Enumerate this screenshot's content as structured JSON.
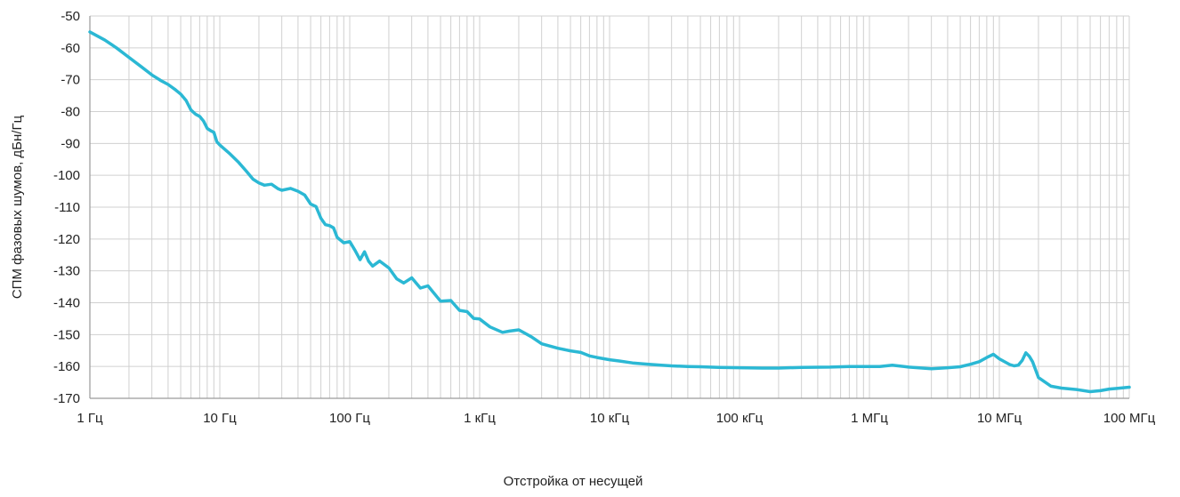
{
  "chart_data": {
    "type": "line",
    "title": "",
    "xlabel": "Отстройка от несущей",
    "ylabel": "СПМ фазовых шумов, дБн/Гц",
    "x_scale": "log",
    "xlim": [
      1,
      100000000
    ],
    "ylim": [
      -170,
      -50
    ],
    "grid": true,
    "legend": "none",
    "colors": {
      "line": "#2bb8d4",
      "grid": "#d0d0d0",
      "axis": "#9a9a9a"
    },
    "x_ticks": [
      {
        "value": 1,
        "label": "1 Гц"
      },
      {
        "value": 10,
        "label": "10 Гц"
      },
      {
        "value": 100,
        "label": "100 Гц"
      },
      {
        "value": 1000,
        "label": "1 кГц"
      },
      {
        "value": 10000,
        "label": "10 кГц"
      },
      {
        "value": 100000,
        "label": "100 кГц"
      },
      {
        "value": 1000000,
        "label": "1 МГц"
      },
      {
        "value": 10000000,
        "label": "10 МГц"
      },
      {
        "value": 100000000,
        "label": "100 МГц"
      }
    ],
    "y_ticks": [
      {
        "value": -50,
        "label": "-50"
      },
      {
        "value": -60,
        "label": "-60"
      },
      {
        "value": -70,
        "label": "-70"
      },
      {
        "value": -80,
        "label": "-80"
      },
      {
        "value": -90,
        "label": "-90"
      },
      {
        "value": -100,
        "label": "-100"
      },
      {
        "value": -110,
        "label": "-110"
      },
      {
        "value": -120,
        "label": "-120"
      },
      {
        "value": -130,
        "label": "-130"
      },
      {
        "value": -140,
        "label": "-140"
      },
      {
        "value": -150,
        "label": "-150"
      },
      {
        "value": -160,
        "label": "-160"
      },
      {
        "value": -170,
        "label": "-170"
      }
    ],
    "series": [
      {
        "x": [
          1,
          1.3,
          1.6,
          2,
          2.5,
          3,
          3.5,
          4,
          4.5,
          5,
          5.5,
          6,
          6.5,
          7,
          7.5,
          8,
          8.5,
          9,
          9.5,
          10,
          12,
          14,
          16,
          18,
          20,
          22,
          25,
          28,
          30,
          35,
          40,
          45,
          50,
          55,
          60,
          65,
          70,
          75,
          80,
          90,
          100,
          110,
          120,
          130,
          140,
          150,
          170,
          200,
          230,
          260,
          300,
          350,
          400,
          500,
          600,
          700,
          800,
          900,
          1000,
          1200,
          1500,
          1700,
          2000,
          2500,
          3000,
          4000,
          5000,
          6000,
          7000,
          8000,
          10000,
          12000,
          15000,
          20000,
          25000,
          30000,
          40000,
          50000,
          70000,
          100000,
          150000,
          200000,
          300000,
          500000,
          700000,
          900000,
          1000000,
          1200000,
          1500000,
          2000000,
          3000000,
          4000000,
          5000000,
          6000000,
          7000000,
          8000000,
          9000000,
          10000000,
          12000000,
          13000000,
          14000000,
          15000000,
          16000000,
          17000000,
          18000000,
          20000000,
          25000000,
          30000000,
          40000000,
          50000000,
          60000000,
          70000000,
          80000000,
          100000000
        ],
        "y": [
          -55,
          -57.5,
          -60,
          -63,
          -66,
          -68.5,
          -70.2,
          -71.5,
          -73,
          -74.5,
          -76.5,
          -79.5,
          -80.8,
          -81.5,
          -83,
          -85.3,
          -86,
          -86.5,
          -89.5,
          -90.5,
          -93.3,
          -96,
          -98.7,
          -101.2,
          -102.4,
          -103.1,
          -102.8,
          -104.2,
          -104.7,
          -104.1,
          -105,
          -106.2,
          -109,
          -109.8,
          -113.5,
          -115.5,
          -115.8,
          -116.5,
          -119.5,
          -121.2,
          -120.8,
          -123.6,
          -126.5,
          -124,
          -127,
          -128.5,
          -126.9,
          -129.1,
          -132.5,
          -133.8,
          -132.2,
          -135.4,
          -134.7,
          -139.5,
          -139.3,
          -142.4,
          -142.8,
          -144.9,
          -145.1,
          -147.6,
          -149.3,
          -148.9,
          -148.5,
          -150.7,
          -152.9,
          -154.3,
          -155.1,
          -155.6,
          -156.7,
          -157.2,
          -157.9,
          -158.3,
          -158.9,
          -159.3,
          -159.6,
          -159.8,
          -160,
          -160.1,
          -160.3,
          -160.4,
          -160.5,
          -160.5,
          -160.3,
          -160.2,
          -160,
          -160,
          -160,
          -160,
          -159.6,
          -160.2,
          -160.7,
          -160.4,
          -160.1,
          -159.3,
          -158.5,
          -157.2,
          -156.2,
          -157.6,
          -159.4,
          -159.8,
          -159.6,
          -158.1,
          -155.7,
          -156.8,
          -158.5,
          -163.5,
          -166.2,
          -166.8,
          -167.3,
          -167.9,
          -167.6,
          -167.1,
          -166.9,
          -166.5
        ]
      }
    ]
  }
}
